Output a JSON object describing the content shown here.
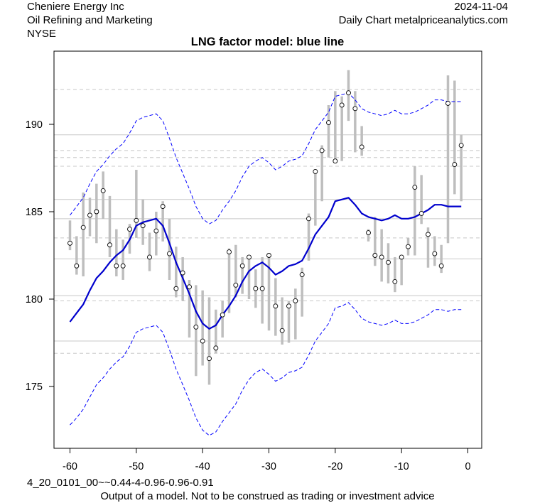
{
  "header": {
    "company": "Cheniere Energy Inc",
    "industry": "Oil Refining and Marketing",
    "exchange": "NYSE",
    "date": "2024-11-04",
    "source": "Daily Chart metalpriceanalytics.com"
  },
  "footer": {
    "model_code": "4_20_0101_00~~0.44-4-0.96-0.96-0.91",
    "disclaimer": "Output of a model. Not to be construed as trading or investment advice"
  },
  "colors": {
    "model_line": "#0000cd",
    "band_line": "#0000ff",
    "price_bar": "#bebebe",
    "grid_solid": "#c8c8c8",
    "grid_dashed": "#c8c8c8"
  },
  "chart_data": {
    "type": "line",
    "title": "LNG factor model: blue line",
    "xlabel": "",
    "ylabel": "",
    "xlim": [
      -60,
      0
    ],
    "ylim": [
      171.5,
      193.5
    ],
    "x_ticks": [
      -60,
      -50,
      -40,
      -30,
      -20,
      -10,
      0
    ],
    "y_ticks": [
      175,
      180,
      185,
      190
    ],
    "h_solid_lines": [
      177.6,
      180.2,
      182.3,
      184.6,
      185.7,
      189.4
    ],
    "h_dashed_lines": [
      176.9,
      179.9,
      183.5,
      187.6,
      188.1,
      188.5,
      192.0
    ],
    "series": [
      {
        "kind": "model",
        "x": [
          -60,
          -59,
          -58,
          -57,
          -56,
          -55,
          -54,
          -53,
          -52,
          -51,
          -50,
          -49,
          -48,
          -47,
          -46,
          -45,
          -44,
          -43,
          -42,
          -41,
          -40,
          -39,
          -38,
          -37,
          -36,
          -35,
          -34,
          -33,
          -32,
          -31,
          -30,
          -29,
          -28,
          -27,
          -26,
          -25,
          -24,
          -23,
          -22,
          -21,
          -20,
          -19,
          -18,
          -17,
          -16,
          -15,
          -14,
          -13,
          -12,
          -11,
          -10,
          -9,
          -8,
          -7,
          -6,
          -5,
          -4,
          -3,
          -2,
          -1
        ],
        "y": [
          178.7,
          179.2,
          179.7,
          180.5,
          181.2,
          181.6,
          182.1,
          182.5,
          182.8,
          183.4,
          184.2,
          184.4,
          184.5,
          184.6,
          184.2,
          183.2,
          182.1,
          181.2,
          180.3,
          179.3,
          178.6,
          178.3,
          178.5,
          179.1,
          179.6,
          180.2,
          181.0,
          181.6,
          181.9,
          182.1,
          181.8,
          181.4,
          181.6,
          181.9,
          182.0,
          182.2,
          182.9,
          183.7,
          184.2,
          184.7,
          185.6,
          185.7,
          185.8,
          185.4,
          184.9,
          184.7,
          184.6,
          184.5,
          184.6,
          184.8,
          184.6,
          184.6,
          184.7,
          184.9,
          185.1,
          185.4,
          185.4,
          185.3,
          185.3,
          185.3
        ]
      },
      {
        "kind": "upper_band",
        "x": [
          -60,
          -59,
          -58,
          -57,
          -56,
          -55,
          -54,
          -53,
          -52,
          -51,
          -50,
          -49,
          -48,
          -47,
          -46,
          -45,
          -44,
          -43,
          -42,
          -41,
          -40,
          -39,
          -38,
          -37,
          -36,
          -35,
          -34,
          -33,
          -32,
          -31,
          -30,
          -29,
          -28,
          -27,
          -26,
          -25,
          -24,
          -23,
          -22,
          -21,
          -20,
          -19,
          -18,
          -17,
          -16,
          -15,
          -14,
          -13,
          -12,
          -11,
          -10,
          -9,
          -8,
          -7,
          -6,
          -5,
          -4,
          -3,
          -2,
          -1
        ],
        "y": [
          184.8,
          185.3,
          185.8,
          186.6,
          187.3,
          187.7,
          188.2,
          188.6,
          188.9,
          189.5,
          190.2,
          190.4,
          190.5,
          190.6,
          190.2,
          189.2,
          188.1,
          187.2,
          186.3,
          185.3,
          184.6,
          184.3,
          184.5,
          185.1,
          185.6,
          186.2,
          187.0,
          187.6,
          187.9,
          188.1,
          187.8,
          187.4,
          187.6,
          187.9,
          188.0,
          188.2,
          188.9,
          189.7,
          190.2,
          190.7,
          191.6,
          191.7,
          191.8,
          191.4,
          190.9,
          190.7,
          190.6,
          190.5,
          190.6,
          190.8,
          190.6,
          190.6,
          190.7,
          190.9,
          191.1,
          191.4,
          191.4,
          191.3,
          191.3,
          191.3
        ]
      },
      {
        "kind": "lower_band",
        "x": [
          -60,
          -59,
          -58,
          -57,
          -56,
          -55,
          -54,
          -53,
          -52,
          -51,
          -50,
          -49,
          -48,
          -47,
          -46,
          -45,
          -44,
          -43,
          -42,
          -41,
          -40,
          -39,
          -38,
          -37,
          -36,
          -35,
          -34,
          -33,
          -32,
          -31,
          -30,
          -29,
          -28,
          -27,
          -26,
          -25,
          -24,
          -23,
          -22,
          -21,
          -20,
          -19,
          -18,
          -17,
          -16,
          -15,
          -14,
          -13,
          -12,
          -11,
          -10,
          -9,
          -8,
          -7,
          -6,
          -5,
          -4,
          -3,
          -2,
          -1
        ],
        "y": [
          172.8,
          173.2,
          173.7,
          174.4,
          175.1,
          175.5,
          176.0,
          176.4,
          176.7,
          177.3,
          178.1,
          178.3,
          178.4,
          178.5,
          178.1,
          177.1,
          176.0,
          175.1,
          174.2,
          173.2,
          172.5,
          172.2,
          172.4,
          173.0,
          173.5,
          174.0,
          174.8,
          175.4,
          175.8,
          176.0,
          175.7,
          175.3,
          175.5,
          175.8,
          175.9,
          176.1,
          176.8,
          177.6,
          178.1,
          178.6,
          179.5,
          179.6,
          179.8,
          179.4,
          178.9,
          178.7,
          178.6,
          178.5,
          178.6,
          178.8,
          178.6,
          178.6,
          178.7,
          178.9,
          179.1,
          179.4,
          179.4,
          179.3,
          179.4,
          179.4
        ]
      },
      {
        "kind": "price",
        "x": [
          -60,
          -59,
          -58,
          -57,
          -56,
          -55,
          -54,
          -53,
          -52,
          -51,
          -50,
          -49,
          -48,
          -47,
          -46,
          -45,
          -44,
          -43,
          -42,
          -41,
          -40,
          -39,
          -38,
          -37,
          -36,
          -35,
          -34,
          -33,
          -32,
          -31,
          -30,
          -29,
          -28,
          -27,
          -26,
          -25,
          -24,
          -23,
          -22,
          -21,
          -20,
          -19,
          -18,
          -17,
          -16,
          -15,
          -14,
          -13,
          -12,
          -11,
          -10,
          -9,
          -8,
          -7,
          -6,
          -5,
          -4,
          -3,
          -2,
          -1
        ],
        "close": [
          183.2,
          181.9,
          184.1,
          184.8,
          185.0,
          186.2,
          183.1,
          181.9,
          181.9,
          184.0,
          184.5,
          184.2,
          182.4,
          183.9,
          185.3,
          182.6,
          180.6,
          181.5,
          180.7,
          178.4,
          177.6,
          176.6,
          177.2,
          179.1,
          182.7,
          180.8,
          181.9,
          182.4,
          180.6,
          180.6,
          182.5,
          179.6,
          178.2,
          179.6,
          179.9,
          181.4,
          184.6,
          187.3,
          188.5,
          190.1,
          187.9,
          191.1,
          191.8,
          190.9,
          188.7,
          183.8,
          182.5,
          182.4,
          182.1,
          181.0,
          182.4,
          183.0,
          186.4,
          184.9,
          183.7,
          182.6,
          181.9,
          191.2,
          187.7,
          188.8
        ],
        "high": [
          184.5,
          183.6,
          186.1,
          185.8,
          186.6,
          187.3,
          185.9,
          184.0,
          183.4,
          184.3,
          187.4,
          185.7,
          183.8,
          185.0,
          185.6,
          184.6,
          183.0,
          182.4,
          181.1,
          180.8,
          180.5,
          180.1,
          179.4,
          179.9,
          182.9,
          183.1,
          182.4,
          182.5,
          181.7,
          182.4,
          182.5,
          181.2,
          180.1,
          179.9,
          180.6,
          181.8,
          184.9,
          187.3,
          188.8,
          191.1,
          191.9,
          191.6,
          193.1,
          191.9,
          189.9,
          184.0,
          184.7,
          184.0,
          183.2,
          182.4,
          182.5,
          183.5,
          187.6,
          187.1,
          184.1,
          183.6,
          183.1,
          192.8,
          192.5,
          189.4
        ]
      },
      {
        "kind": "price_low",
        "low": [
          182.8,
          181.4,
          181.3,
          183.6,
          183.2,
          184.6,
          182.4,
          181.3,
          181.1,
          182.6,
          183.5,
          183.1,
          181.6,
          182.5,
          183.3,
          181.1,
          180.1,
          179.9,
          177.8,
          175.6,
          176.2,
          175.1,
          176.9,
          177.8,
          179.2,
          180.1,
          180.3,
          180.0,
          179.5,
          178.6,
          178.2,
          177.9,
          177.4,
          177.5,
          177.7,
          179.0,
          182.2,
          184.2,
          185.6,
          188.1,
          187.8,
          187.9,
          190.2,
          188.4,
          188.2,
          183.3,
          181.9,
          181.0,
          180.9,
          180.4,
          180.8,
          182.5,
          182.5,
          184.3,
          181.8,
          181.9,
          181.5,
          183.2,
          186.0,
          185.6
        ]
      }
    ]
  }
}
